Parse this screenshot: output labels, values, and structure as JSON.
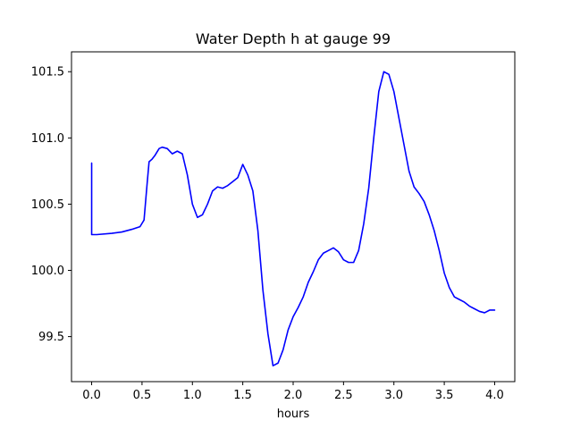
{
  "chart_data": {
    "type": "line",
    "title": "Water Depth h at gauge 99",
    "xlabel": "hours",
    "ylabel": "",
    "xlim": [
      -0.2,
      4.2
    ],
    "ylim": [
      99.16,
      101.65
    ],
    "grid": false,
    "x_ticks": [
      0.0,
      0.5,
      1.0,
      1.5,
      2.0,
      2.5,
      3.0,
      3.5,
      4.0
    ],
    "x_tick_labels": [
      "0.0",
      "0.5",
      "1.0",
      "1.5",
      "2.0",
      "2.5",
      "3.0",
      "3.5",
      "4.0"
    ],
    "y_ticks": [
      99.5,
      100.0,
      100.5,
      101.0,
      101.5
    ],
    "y_tick_labels": [
      "99.5",
      "100.0",
      "100.5",
      "101.0",
      "101.5"
    ],
    "series": [
      {
        "color": "#0000ff",
        "x": [
          0.0,
          0.0,
          0.05,
          0.2,
          0.3,
          0.4,
          0.48,
          0.52,
          0.55,
          0.57,
          0.6,
          0.63,
          0.67,
          0.7,
          0.75,
          0.8,
          0.85,
          0.9,
          0.95,
          1.0,
          1.05,
          1.1,
          1.15,
          1.2,
          1.25,
          1.3,
          1.35,
          1.4,
          1.45,
          1.5,
          1.55,
          1.6,
          1.65,
          1.7,
          1.75,
          1.8,
          1.85,
          1.9,
          1.95,
          2.0,
          2.05,
          2.1,
          2.15,
          2.2,
          2.25,
          2.3,
          2.35,
          2.4,
          2.45,
          2.5,
          2.55,
          2.6,
          2.65,
          2.7,
          2.75,
          2.8,
          2.85,
          2.9,
          2.95,
          3.0,
          3.05,
          3.1,
          3.15,
          3.2,
          3.25,
          3.3,
          3.35,
          3.4,
          3.45,
          3.5,
          3.55,
          3.6,
          3.65,
          3.7,
          3.75,
          3.8,
          3.85,
          3.9,
          3.95,
          4.0
        ],
        "y": [
          100.81,
          100.27,
          100.27,
          100.28,
          100.29,
          100.31,
          100.33,
          100.38,
          100.65,
          100.82,
          100.84,
          100.87,
          100.92,
          100.93,
          100.92,
          100.88,
          100.9,
          100.88,
          100.72,
          100.5,
          100.4,
          100.42,
          100.5,
          100.6,
          100.63,
          100.62,
          100.64,
          100.67,
          100.7,
          100.8,
          100.72,
          100.6,
          100.3,
          99.85,
          99.52,
          99.28,
          99.3,
          99.4,
          99.55,
          99.65,
          99.72,
          99.8,
          99.91,
          99.99,
          100.08,
          100.13,
          100.15,
          100.17,
          100.14,
          100.08,
          100.06,
          100.06,
          100.15,
          100.35,
          100.62,
          101.0,
          101.35,
          101.5,
          101.48,
          101.35,
          101.15,
          100.95,
          100.75,
          100.63,
          100.58,
          100.52,
          100.42,
          100.3,
          100.15,
          99.98,
          99.87,
          99.8,
          99.78,
          99.76,
          99.73,
          99.71,
          99.69,
          99.68,
          99.7,
          99.7
        ]
      }
    ]
  }
}
